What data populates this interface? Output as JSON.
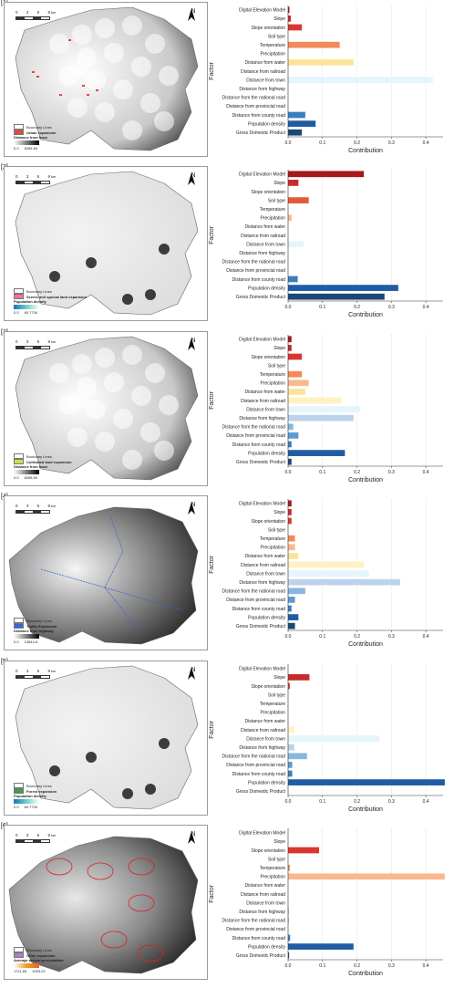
{
  "factors": [
    "Digital Elevation Model",
    "Slope",
    "Slope orientation",
    "Soil type",
    "Temperature",
    "Precipitation",
    "Distance from water",
    "Distance from railroad",
    "Distance from town",
    "Distance from highway",
    "Distance from the national road",
    "Distance from provincial road",
    "Distance from county road",
    "Population density",
    "Gross Domestic Product"
  ],
  "factor_colors": [
    "#a5191d",
    "#c62a2a",
    "#d9362e",
    "#e35a3a",
    "#f28a5a",
    "#f9b98f",
    "#fce39a",
    "#fdf2c0",
    "#e6f4fb",
    "#bcd3ec",
    "#8ab7df",
    "#5d9ad1",
    "#3b7ec0",
    "#1f5ca3",
    "#1c4877"
  ],
  "axis_labels": {
    "x": "Contribution",
    "y": "Factor"
  },
  "map_common": {
    "north": "N",
    "scale_ticks": [
      "0",
      "3",
      "6",
      "9"
    ],
    "scale_unit": "km",
    "boundary": "Boundary Lines"
  },
  "panels": [
    {
      "label": "[1]",
      "legend_title": "Urban expansion",
      "ramp_title": "Distance from town",
      "range": [
        "0.0",
        "8398.59"
      ],
      "ramp": [
        "#ffffff",
        "#000000"
      ],
      "swatch": "#e24a3a"
    },
    {
      "label": "[2]",
      "legend_title": "Scenic and special land expansion",
      "ramp_title": "Population density",
      "range": [
        "0.0",
        "60.7734"
      ],
      "ramp": [
        "#1a73b8",
        "#6cd0c8",
        "#ffffff"
      ],
      "swatch": "#ff6fa0"
    },
    {
      "label": "[3]",
      "legend_title": "Cultivated land expansion",
      "ramp_title": "Distance from town",
      "range": [
        "0.0",
        "8398.59"
      ],
      "ramp": [
        "#ffffff",
        "#000000"
      ],
      "swatch": "#c8e04a"
    },
    {
      "label": "[4]",
      "legend_title": "Traffic Expansion",
      "ramp_title": "Distance from highway",
      "range": [
        "0.0",
        "13644.8"
      ],
      "ramp": [
        "#ffffff",
        "#000000"
      ],
      "swatch": "#3a66d8"
    },
    {
      "label": "[5]",
      "legend_title": "Forest expansion",
      "ramp_title": "Population density",
      "range": [
        "0.0",
        "60.7734"
      ],
      "ramp": [
        "#1a73b8",
        "#6cd0c8",
        "#ffffff"
      ],
      "swatch": "#3ba048"
    },
    {
      "label": "[6]",
      "legend_title": "Other expansion",
      "ramp_title": "Average annual precipitation",
      "range": [
        "1711.65",
        "1993.29"
      ],
      "ramp": [
        "#ffffff",
        "#f39a2a",
        "#e5651c"
      ],
      "swatch": "#b27acb"
    }
  ],
  "chart_data": [
    {
      "type": "bar",
      "orientation": "horizontal",
      "x_ticks": [
        "0.0",
        "0.1",
        "0.2",
        "0.3",
        "0.4"
      ],
      "xlim": [
        0,
        0.45
      ],
      "values": [
        0.004,
        0.008,
        0.04,
        0,
        0.15,
        0,
        0.19,
        0,
        0.42,
        0,
        0,
        0,
        0.05,
        0.08,
        0.04
      ]
    },
    {
      "type": "bar",
      "orientation": "horizontal",
      "x_ticks": [
        "0.0",
        "0.1",
        "0.2",
        "0.3",
        "0.4"
      ],
      "xlim": [
        0,
        0.45
      ],
      "values": [
        0.22,
        0.03,
        0,
        0.06,
        0,
        0.01,
        0,
        0,
        0.045,
        0,
        0,
        0,
        0.028,
        0.32,
        0.28
      ]
    },
    {
      "type": "bar",
      "orientation": "horizontal",
      "x_ticks": [
        "0.0",
        "0.1",
        "0.2",
        "0.3",
        "0.4"
      ],
      "xlim": [
        0,
        0.45
      ],
      "values": [
        0.01,
        0.01,
        0.04,
        0,
        0.04,
        0.06,
        0.05,
        0.155,
        0.21,
        0.19,
        0.015,
        0.03,
        0.01,
        0.165,
        0.01
      ]
    },
    {
      "type": "bar",
      "orientation": "horizontal",
      "x_ticks": [
        "0.0",
        "0.1",
        "0.2",
        "0.3",
        "0.4"
      ],
      "xlim": [
        0,
        0.45
      ],
      "values": [
        0.01,
        0.01,
        0.01,
        0,
        0.02,
        0.02,
        0.03,
        0.22,
        0.235,
        0.325,
        0.05,
        0.02,
        0.01,
        0.03,
        0.02
      ]
    },
    {
      "type": "bar",
      "orientation": "horizontal",
      "x_ticks": [
        "0.0",
        "0.1",
        "0.2",
        "0.3",
        "0.4"
      ],
      "xlim": [
        0,
        0.45
      ],
      "values": [
        0,
        0.062,
        0.005,
        0,
        0,
        0,
        0,
        0.018,
        0.265,
        0.018,
        0.055,
        0.012,
        0.012,
        0.455,
        0
      ]
    },
    {
      "type": "bar",
      "orientation": "horizontal",
      "x_ticks": [
        "0.0",
        "0.1",
        "0.2",
        "0.3",
        "0.4"
      ],
      "xlim": [
        0,
        0.45
      ],
      "values": [
        0,
        0,
        0.09,
        0,
        0.005,
        0.455,
        0,
        0,
        0,
        0.003,
        0.002,
        0,
        0.006,
        0.19,
        0.003
      ]
    }
  ]
}
